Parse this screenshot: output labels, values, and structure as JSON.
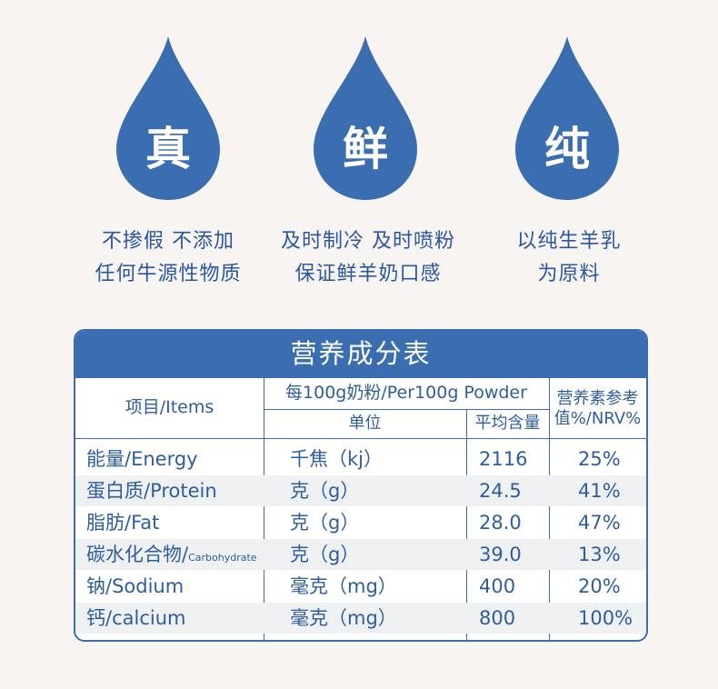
{
  "features": [
    {
      "char": "真",
      "line1": "不掺假 不添加",
      "line2": "任何牛源性物质"
    },
    {
      "char": "鲜",
      "line1": "及时制冷 及时喷粉",
      "line2": "保证鲜羊奶口感"
    },
    {
      "char": "纯",
      "line1": "以纯生羊乳",
      "line2": "为原料"
    }
  ],
  "table": {
    "title": "营养成分表",
    "header": {
      "items": "项目/Items",
      "per100": "每100g奶粉/Per100g Powder",
      "unit": "单位",
      "avg": "平均含量",
      "nrv_line1": "营养素参考",
      "nrv_line2": "值%/NRV%"
    },
    "rows": [
      {
        "item": "能量/Energy",
        "item_small": "",
        "unit": "千焦（kj）",
        "amount": "2116",
        "nrv": "25%"
      },
      {
        "item": "蛋白质/Protein",
        "item_small": "",
        "unit": "克（g）",
        "amount": "24.5",
        "nrv": "41%"
      },
      {
        "item": "脂肪/Fat",
        "item_small": "",
        "unit": "克（g）",
        "amount": "28.0",
        "nrv": "47%"
      },
      {
        "item": "碳水化合物/",
        "item_small": "Carbohydrate",
        "unit": "克（g）",
        "amount": "39.0",
        "nrv": "13%"
      },
      {
        "item": "钠/Sodium",
        "item_small": "",
        "unit": "毫克（mg）",
        "amount": "400",
        "nrv": "20%"
      },
      {
        "item": "钙/calcium",
        "item_small": "",
        "unit": "毫克（mg）",
        "amount": "800",
        "nrv": "100%"
      }
    ]
  },
  "colors": {
    "primary": "#3a6eb0",
    "background": "#f8f4f1",
    "text": "#2f5d9e",
    "shade": "#eff0f2"
  }
}
